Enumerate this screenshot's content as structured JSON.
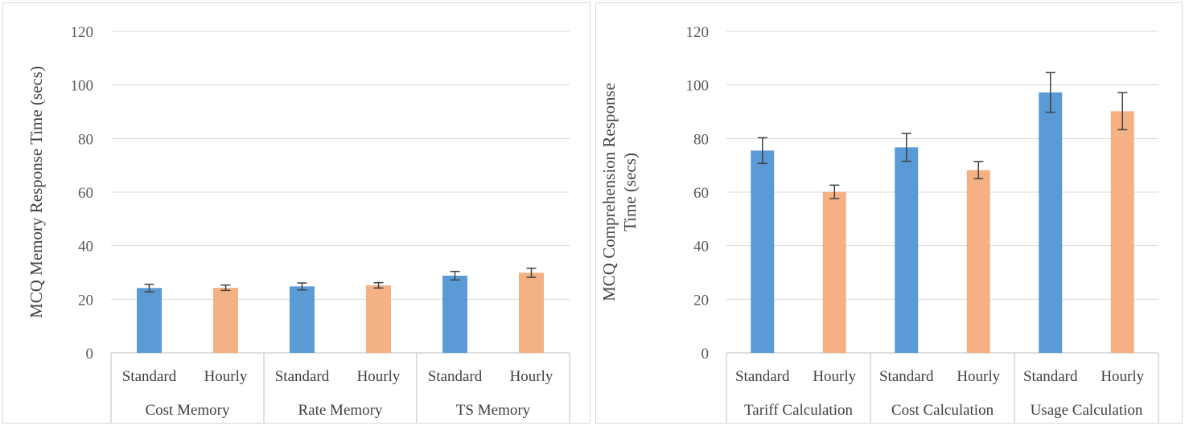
{
  "chart_data": [
    {
      "type": "bar",
      "ylabel": "MCQ Memory Response Time (secs)",
      "ylim": [
        0,
        120
      ],
      "yticks": [
        0,
        20,
        40,
        60,
        80,
        100,
        120
      ],
      "groups": [
        "Cost Memory",
        "Rate Memory",
        "TS Memory"
      ],
      "subcategories": [
        "Standard",
        "Hourly"
      ],
      "bars": [
        {
          "group": "Cost Memory",
          "condition": "Standard",
          "value": 24.2,
          "error": 1.4
        },
        {
          "group": "Cost Memory",
          "condition": "Hourly",
          "value": 24.3,
          "error": 1.0
        },
        {
          "group": "Rate Memory",
          "condition": "Standard",
          "value": 24.8,
          "error": 1.3
        },
        {
          "group": "Rate Memory",
          "condition": "Hourly",
          "value": 25.2,
          "error": 1.0
        },
        {
          "group": "TS Memory",
          "condition": "Standard",
          "value": 28.8,
          "error": 1.6
        },
        {
          "group": "TS Memory",
          "condition": "Hourly",
          "value": 29.9,
          "error": 1.7
        }
      ],
      "grid": true,
      "legend": "none"
    },
    {
      "type": "bar",
      "ylabel_lines": [
        "MCQ Comprehension Response",
        "Time (secs)"
      ],
      "ylim": [
        0,
        120
      ],
      "yticks": [
        0,
        20,
        40,
        60,
        80,
        100,
        120
      ],
      "groups": [
        "Tariff Calculation",
        "Cost Calculation",
        "Usage Calculation"
      ],
      "subcategories": [
        "Standard",
        "Hourly"
      ],
      "bars": [
        {
          "group": "Tariff Calculation",
          "condition": "Standard",
          "value": 75.5,
          "error": 4.8
        },
        {
          "group": "Tariff Calculation",
          "condition": "Hourly",
          "value": 60.1,
          "error": 2.5
        },
        {
          "group": "Cost Calculation",
          "condition": "Standard",
          "value": 76.7,
          "error": 5.2
        },
        {
          "group": "Cost Calculation",
          "condition": "Hourly",
          "value": 68.2,
          "error": 3.2
        },
        {
          "group": "Usage Calculation",
          "condition": "Standard",
          "value": 97.2,
          "error": 7.4
        },
        {
          "group": "Usage Calculation",
          "condition": "Hourly",
          "value": 90.2,
          "error": 6.9
        }
      ],
      "grid": true,
      "legend": "none"
    }
  ],
  "colors": {
    "Standard": "#5b9bd5",
    "Hourly": "#f4b183",
    "grid": "#d9d9d9",
    "errorbar": "#404040"
  }
}
